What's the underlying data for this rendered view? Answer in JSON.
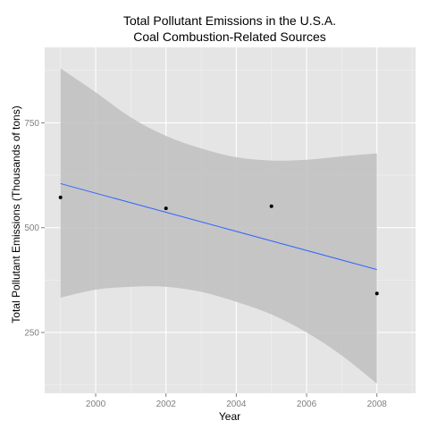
{
  "chart_data": {
    "type": "scatter",
    "title": [
      "Total Pollutant Emissions in the U.S.A.",
      "Coal Combustion-Related Sources"
    ],
    "xlabel": "Year",
    "ylabel": "Total Pollutant Emissions (Thousands of tons)",
    "xlim": [
      1998.55,
      2009.1
    ],
    "ylim": [
      105,
      930
    ],
    "x_ticks": [
      2000,
      2002,
      2004,
      2006,
      2008
    ],
    "x_tick_labels": [
      "2000",
      "2002",
      "2004",
      "2006",
      "2008"
    ],
    "y_ticks": [
      250,
      500,
      750
    ],
    "y_tick_labels": [
      "250",
      "500",
      "750"
    ],
    "grid": true,
    "points": {
      "x": [
        1999,
        2002,
        2005,
        2008
      ],
      "y": [
        572,
        546,
        551,
        343
      ]
    },
    "fit_line": {
      "x": [
        1999,
        2008
      ],
      "y": [
        605,
        400
      ]
    },
    "confidence_band": {
      "x": [
        1999,
        2000,
        2001,
        2002,
        2003,
        2004,
        2005,
        2006,
        2007,
        2008
      ],
      "lower": [
        333,
        352,
        359,
        359,
        347,
        323,
        293,
        250,
        195,
        128
      ],
      "upper": [
        880,
        823,
        763,
        719,
        689,
        668,
        660,
        662,
        670,
        677
      ]
    },
    "colors": {
      "panel": "#e5e5e5",
      "grid_major": "#ffffff",
      "grid_minor": "#f2f2f2",
      "band": "#c0c0c0",
      "line": "#3366ff",
      "points": "#000000"
    }
  }
}
